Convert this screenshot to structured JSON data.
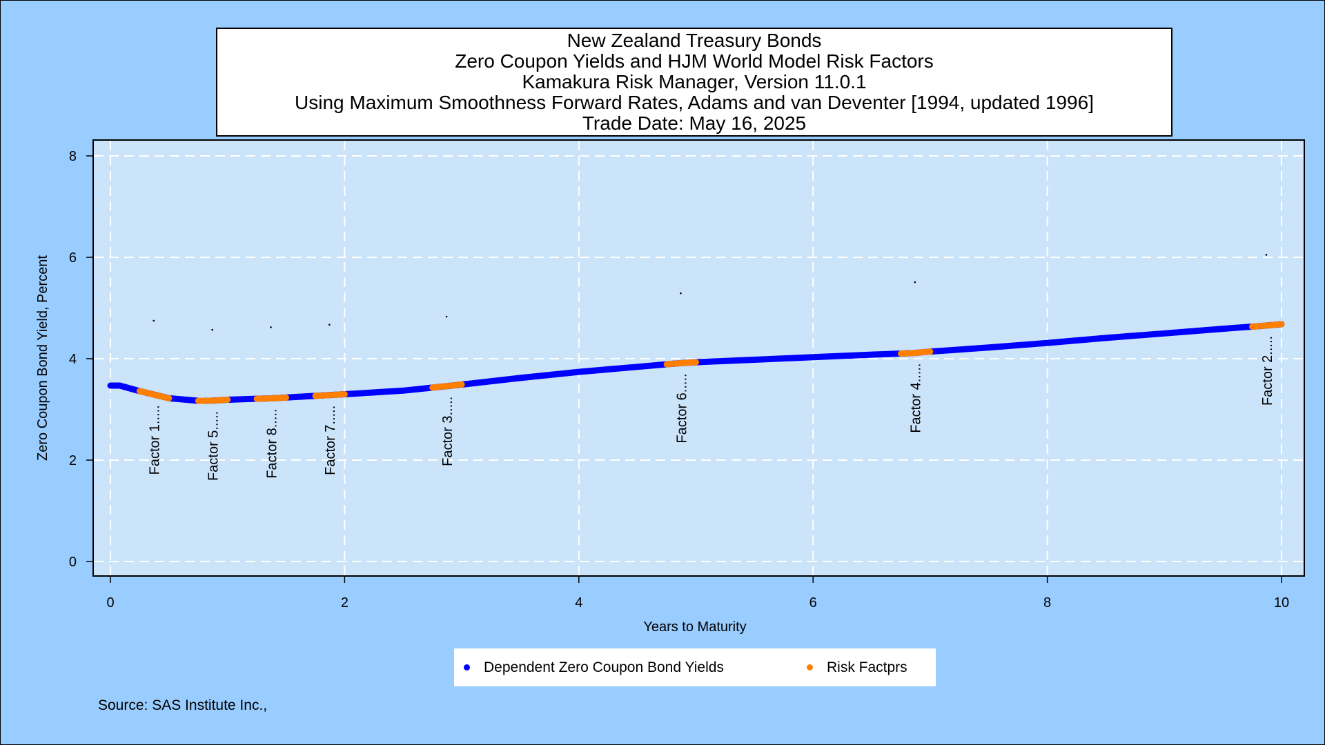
{
  "title_lines": [
    "New Zealand Treasury Bonds",
    "Zero Coupon Yields and HJM World Model Risk Factors",
    "Kamakura Risk Manager, Version 11.0.1",
    "Using Maximum Smoothness Forward Rates, Adams and van Deventer [1994, updated 1996]",
    "Trade Date: May 16, 2025"
  ],
  "source_note": "Source: SAS Institute Inc.,",
  "legend": [
    {
      "label": "Dependent Zero Coupon Bond Yields",
      "color": "#0000ff"
    },
    {
      "label": "Risk Factprs",
      "color": "#ff8000"
    }
  ],
  "colors": {
    "background": "#99ccff",
    "plot_background": "#cce4fa",
    "grid": "#ffffff",
    "yield_curve": "#0000ff",
    "risk_factor": "#ff8000"
  },
  "chart_data": {
    "type": "line",
    "xlabel": "Years to Maturity",
    "ylabel": "Zero Coupon Bond Yield, Percent",
    "xlim": [
      0,
      10
    ],
    "ylim": [
      0,
      8
    ],
    "x_ticks": [
      "0",
      "2",
      "4",
      "6",
      "8",
      "10"
    ],
    "y_ticks": [
      "0",
      "2",
      "4",
      "6",
      "8"
    ],
    "grid": true,
    "legend_position": "bottom",
    "series": [
      {
        "name": "Dependent Zero Coupon Bond Yields",
        "x": [
          0,
          0.08,
          0.25,
          0.5,
          0.75,
          0.85,
          1.0,
          1.4,
          1.85,
          2.0,
          2.5,
          3.0,
          3.5,
          4.0,
          4.5,
          4.85,
          5.0,
          5.5,
          6.0,
          6.5,
          6.85,
          7.0,
          7.5,
          8.0,
          8.5,
          9.0,
          9.5,
          9.85,
          10.0
        ],
        "y": [
          3.47,
          3.47,
          3.36,
          3.22,
          3.17,
          3.17,
          3.19,
          3.22,
          3.28,
          3.3,
          3.37,
          3.49,
          3.62,
          3.74,
          3.84,
          3.91,
          3.93,
          3.98,
          4.03,
          4.08,
          4.11,
          4.14,
          4.22,
          4.31,
          4.41,
          4.5,
          4.59,
          4.65,
          4.68
        ]
      },
      {
        "name": "Risk Factprs",
        "segments": [
          {
            "label": "Factor 1.....",
            "x": [
              0.25,
              0.5
            ],
            "marker": {
              "x": 0.37,
              "y": 4.75
            }
          },
          {
            "label": "Factor 5.....",
            "x": [
              0.75,
              1.0
            ],
            "marker": {
              "x": 0.87,
              "y": 4.57
            }
          },
          {
            "label": "Factor 8.....",
            "x": [
              1.25,
              1.5
            ],
            "marker": {
              "x": 1.37,
              "y": 4.62
            }
          },
          {
            "label": "Factor 7.....",
            "x": [
              1.75,
              2.0
            ],
            "marker": {
              "x": 1.87,
              "y": 4.67
            }
          },
          {
            "label": "Factor 3.....",
            "x": [
              2.75,
              3.0
            ],
            "marker": {
              "x": 2.87,
              "y": 4.83
            }
          },
          {
            "label": "Factor 6.....",
            "x": [
              4.75,
              5.0
            ],
            "marker": {
              "x": 4.87,
              "y": 5.29
            }
          },
          {
            "label": "Factor 4.....",
            "x": [
              6.75,
              7.0
            ],
            "marker": {
              "x": 6.87,
              "y": 5.51
            }
          },
          {
            "label": "Factor 2.....",
            "x": [
              9.75,
              10.0
            ],
            "marker": {
              "x": 9.87,
              "y": 6.05
            }
          }
        ]
      }
    ]
  }
}
